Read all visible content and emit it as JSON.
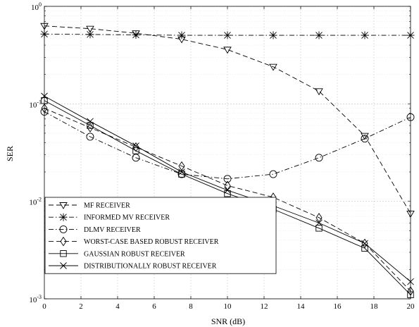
{
  "chart_data": {
    "type": "line",
    "title": "",
    "xlabel": "SNR (dB)",
    "ylabel": "SER",
    "xlim": [
      0,
      20
    ],
    "ylim": [
      0.001,
      1
    ],
    "yscale": "log",
    "grid": true,
    "legend_position": "bottom-left",
    "x_ticks": [
      "0",
      "2",
      "4",
      "6",
      "8",
      "10",
      "12",
      "14",
      "16",
      "18",
      "20"
    ],
    "y_ticks": [
      {
        "base": "10",
        "exp": "-3"
      },
      {
        "base": "10",
        "exp": "-2"
      },
      {
        "base": "10",
        "exp": "-1"
      },
      {
        "base": "10",
        "exp": "0"
      }
    ],
    "x": [
      0,
      2.5,
      5,
      7.5,
      10,
      12.5,
      15,
      17.5,
      20
    ],
    "series": [
      {
        "name": "MF RECEIVER",
        "marker": "triangle-down",
        "dash": "dashed",
        "values": [
          0.63,
          0.59,
          0.53,
          0.46,
          0.36,
          0.24,
          0.135,
          0.047,
          0.0075
        ]
      },
      {
        "name": "INFORMED MV RECEIVER",
        "marker": "star",
        "dash": "dashdot",
        "values": [
          0.52,
          0.515,
          0.51,
          0.505,
          0.505,
          0.505,
          0.505,
          0.505,
          0.505
        ]
      },
      {
        "name": "DLMV RECEIVER",
        "marker": "circle",
        "dash": "dashdot",
        "values": [
          0.083,
          0.046,
          0.028,
          0.019,
          0.017,
          0.019,
          0.028,
          0.044,
          0.073
        ]
      },
      {
        "name": "WORST-CASE BASED ROBUST RECEIVER",
        "marker": "diamond",
        "dash": "dashed",
        "values": [
          0.09,
          0.057,
          0.036,
          0.023,
          0.0145,
          0.011,
          0.0068,
          0.0037,
          0.0012
        ]
      },
      {
        "name": "GAUSSIAN ROBUST RECEIVER",
        "marker": "square",
        "dash": "solid",
        "values": [
          0.108,
          0.06,
          0.033,
          0.019,
          0.012,
          0.0083,
          0.0053,
          0.0033,
          0.0011
        ]
      },
      {
        "name": "DISTRIBUTIONALLY ROBUST RECEIVER",
        "marker": "x",
        "dash": "solid",
        "values": [
          0.12,
          0.066,
          0.037,
          0.02,
          0.013,
          0.009,
          0.006,
          0.0037,
          0.0015
        ]
      }
    ]
  }
}
